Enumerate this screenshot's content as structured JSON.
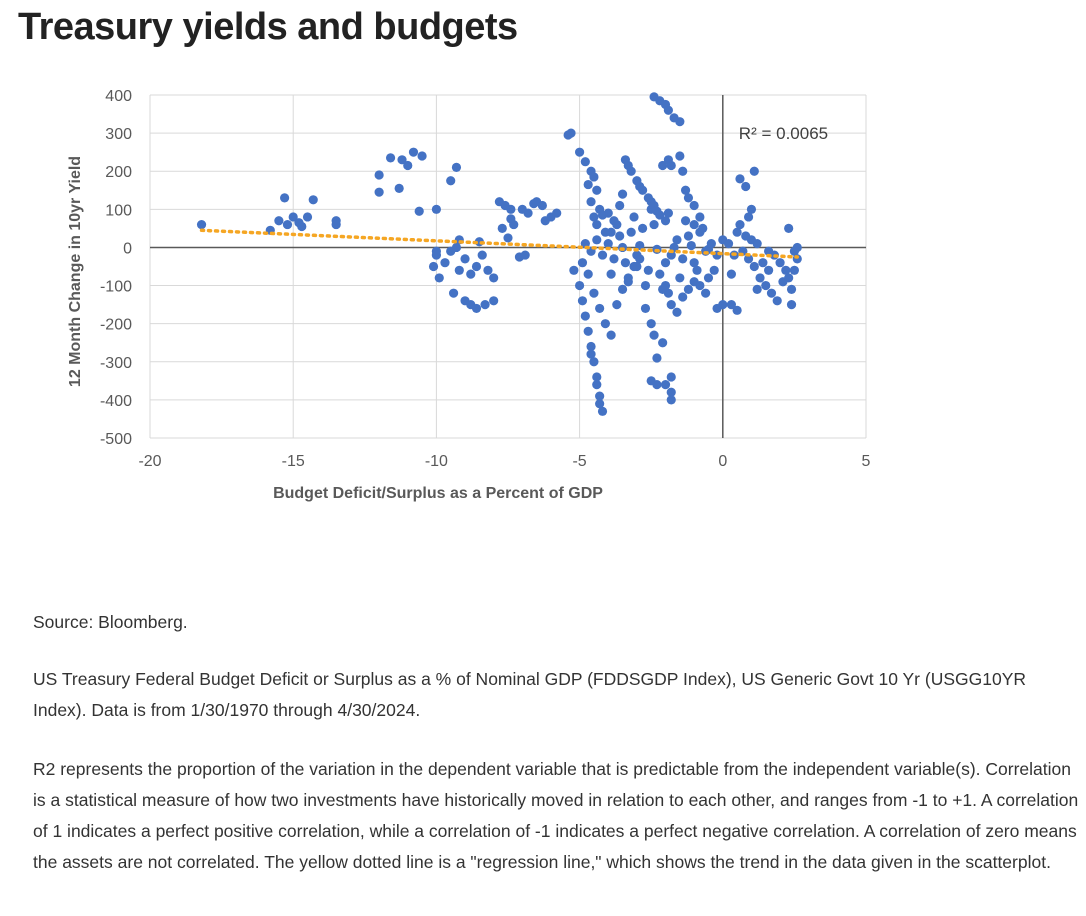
{
  "page": {
    "title": "Treasury yields and budgets",
    "source": "Source: Bloomberg.",
    "description": "US Treasury Federal Budget Deficit or Surplus as a % of Nominal GDP (FDDSGDP Index), US Generic Govt 10 Yr (USGG10YR Index). Data is from 1/30/1970 through 4/30/2024.",
    "r2_note": "R2 represents the proportion of the variation in the dependent variable that is predictable from the independent variable(s). Correlation is a statistical measure of how two investments have historically moved in relation to each other, and ranges from -1 to +1. A correlation of 1 indicates a perfect positive correlation, while a correlation of -1 indicates a perfect negative correlation. A correlation of zero means the assets are not correlated. The yellow dotted line is a \"regression line,\" which shows the trend in the data given in the scatterplot."
  },
  "chart_data": {
    "type": "scatter",
    "title": "",
    "xlabel": "Budget Deficit/Surplus as a Percent of GDP",
    "ylabel": "12 Month Change in 10yr Yield",
    "xlim": [
      -20,
      5
    ],
    "ylim": [
      -500,
      400
    ],
    "xticks": [
      -20,
      -15,
      -10,
      -5,
      0,
      5
    ],
    "yticks": [
      400,
      300,
      200,
      100,
      0,
      -100,
      -200,
      -300,
      -400,
      -500
    ],
    "grid": true,
    "annotation": "R² = 0.0065",
    "point_color": "#4472C4",
    "trendline_color": "#F5A623",
    "trendline": {
      "x": [
        -18.2,
        2.6
      ],
      "y": [
        45,
        -25
      ]
    },
    "points": [
      [
        -18.2,
        60
      ],
      [
        -15.3,
        130
      ],
      [
        -15.5,
        70
      ],
      [
        -15.2,
        60
      ],
      [
        -15,
        80
      ],
      [
        -14.8,
        65
      ],
      [
        -14.5,
        80
      ],
      [
        -14.3,
        125
      ],
      [
        -15.8,
        45
      ],
      [
        -14.7,
        55
      ],
      [
        -13.5,
        60
      ],
      [
        -13.5,
        70
      ],
      [
        -12.0,
        190
      ],
      [
        -12.0,
        145
      ],
      [
        -11.6,
        235
      ],
      [
        -11.3,
        155
      ],
      [
        -11.0,
        215
      ],
      [
        -10.8,
        250
      ],
      [
        -10.5,
        240
      ],
      [
        -10.6,
        95
      ],
      [
        -11.2,
        230
      ],
      [
        -10.0,
        100
      ],
      [
        -9.5,
        175
      ],
      [
        -9.3,
        210
      ],
      [
        -10.1,
        -50
      ],
      [
        -10.0,
        -20
      ],
      [
        -9.9,
        -80
      ],
      [
        -9.7,
        -40
      ],
      [
        -9.5,
        -10
      ],
      [
        -9.3,
        0
      ],
      [
        -9.2,
        -60
      ],
      [
        -9.0,
        -30
      ],
      [
        -8.8,
        -70
      ],
      [
        -8.6,
        -50
      ],
      [
        -8.4,
        -20
      ],
      [
        -8.2,
        -60
      ],
      [
        -8.0,
        -80
      ],
      [
        -9.4,
        -120
      ],
      [
        -9.0,
        -140
      ],
      [
        -8.8,
        -150
      ],
      [
        -8.6,
        -160
      ],
      [
        -8.3,
        -150
      ],
      [
        -8.0,
        -140
      ],
      [
        -9.2,
        20
      ],
      [
        -8.5,
        15
      ],
      [
        -10.0,
        -10
      ],
      [
        -7.8,
        120
      ],
      [
        -7.6,
        110
      ],
      [
        -7.4,
        100
      ],
      [
        -7.0,
        100
      ],
      [
        -6.8,
        90
      ],
      [
        -6.6,
        115
      ],
      [
        -6.3,
        110
      ],
      [
        -6.0,
        80
      ],
      [
        -5.8,
        90
      ],
      [
        -7.7,
        50
      ],
      [
        -7.5,
        25
      ],
      [
        -7.3,
        60
      ],
      [
        -7.1,
        -25
      ],
      [
        -6.9,
        -20
      ],
      [
        -7.4,
        75
      ],
      [
        -6.5,
        120
      ],
      [
        -6.2,
        70
      ],
      [
        -5.4,
        295
      ],
      [
        -5.3,
        300
      ],
      [
        -5.0,
        250
      ],
      [
        -4.8,
        225
      ],
      [
        -4.6,
        200
      ],
      [
        -4.5,
        185
      ],
      [
        -4.7,
        165
      ],
      [
        -4.4,
        150
      ],
      [
        -4.6,
        120
      ],
      [
        -4.5,
        80
      ],
      [
        -4.4,
        60
      ],
      [
        -4.3,
        100
      ],
      [
        -4.2,
        85
      ],
      [
        -4.0,
        90
      ],
      [
        -3.9,
        40
      ],
      [
        -3.8,
        70
      ],
      [
        -3.6,
        110
      ],
      [
        -3.5,
        140
      ],
      [
        -3.4,
        230
      ],
      [
        -3.3,
        215
      ],
      [
        -3.2,
        200
      ],
      [
        -3.0,
        175
      ],
      [
        -2.9,
        160
      ],
      [
        -2.8,
        150
      ],
      [
        -2.6,
        130
      ],
      [
        -2.5,
        120
      ],
      [
        -2.4,
        110
      ],
      [
        -2.3,
        95
      ],
      [
        -2.2,
        85
      ],
      [
        -2.1,
        215
      ],
      [
        -1.9,
        230
      ],
      [
        -1.8,
        215
      ],
      [
        -1.5,
        240
      ],
      [
        -1.4,
        200
      ],
      [
        -1.3,
        150
      ],
      [
        -1.2,
        130
      ],
      [
        -1.0,
        110
      ],
      [
        -0.8,
        80
      ],
      [
        -5.2,
        -60
      ],
      [
        -5.0,
        -100
      ],
      [
        -4.9,
        -140
      ],
      [
        -4.8,
        -180
      ],
      [
        -4.7,
        -220
      ],
      [
        -4.6,
        -260
      ],
      [
        -4.6,
        -280
      ],
      [
        -4.5,
        -300
      ],
      [
        -4.4,
        -340
      ],
      [
        -4.4,
        -360
      ],
      [
        -4.3,
        -390
      ],
      [
        -4.3,
        -410
      ],
      [
        -4.2,
        -430
      ],
      [
        -4.9,
        -40
      ],
      [
        -4.7,
        -70
      ],
      [
        -4.5,
        -120
      ],
      [
        -4.3,
        -160
      ],
      [
        -4.1,
        -200
      ],
      [
        -3.9,
        -230
      ],
      [
        -3.7,
        -150
      ],
      [
        -3.5,
        -110
      ],
      [
        -3.3,
        -80
      ],
      [
        -3.1,
        -50
      ],
      [
        -2.9,
        -30
      ],
      [
        -2.7,
        -160
      ],
      [
        -2.5,
        -200
      ],
      [
        -2.4,
        -230
      ],
      [
        -2.3,
        -290
      ],
      [
        -2.1,
        -250
      ],
      [
        -2.5,
        -350
      ],
      [
        -2.3,
        -360
      ],
      [
        -2.0,
        -360
      ],
      [
        -1.8,
        -340
      ],
      [
        -1.8,
        -380
      ],
      [
        -1.8,
        -400
      ],
      [
        -2.0,
        -100
      ],
      [
        -1.9,
        -120
      ],
      [
        -1.8,
        -150
      ],
      [
        -1.6,
        -170
      ],
      [
        -1.4,
        -130
      ],
      [
        -1.2,
        -110
      ],
      [
        -1.0,
        -90
      ],
      [
        -0.8,
        -100
      ],
      [
        -0.6,
        -120
      ],
      [
        -0.5,
        -80
      ],
      [
        -0.3,
        -60
      ],
      [
        -0.2,
        -160
      ],
      [
        0.0,
        -150
      ],
      [
        0.3,
        -150
      ],
      [
        0.5,
        -165
      ],
      [
        -2.4,
        395
      ],
      [
        -2.2,
        385
      ],
      [
        -2.0,
        375
      ],
      [
        -1.9,
        360
      ],
      [
        -1.7,
        340
      ],
      [
        -1.5,
        330
      ],
      [
        -4.8,
        10
      ],
      [
        -4.6,
        -10
      ],
      [
        -4.4,
        20
      ],
      [
        -4.2,
        -20
      ],
      [
        -4.0,
        10
      ],
      [
        -3.8,
        -30
      ],
      [
        -3.6,
        30
      ],
      [
        -3.4,
        -40
      ],
      [
        -3.2,
        40
      ],
      [
        -3.0,
        -50
      ],
      [
        -2.8,
        50
      ],
      [
        -2.6,
        -60
      ],
      [
        -2.4,
        60
      ],
      [
        -2.2,
        -70
      ],
      [
        -2.0,
        70
      ],
      [
        -1.8,
        -20
      ],
      [
        -1.6,
        20
      ],
      [
        -1.4,
        -30
      ],
      [
        -1.2,
        30
      ],
      [
        -1.0,
        -40
      ],
      [
        -0.8,
        40
      ],
      [
        -0.6,
        -10
      ],
      [
        -0.4,
        10
      ],
      [
        -0.2,
        -20
      ],
      [
        0.0,
        20
      ],
      [
        -3.9,
        -70
      ],
      [
        -3.7,
        60
      ],
      [
        -3.3,
        -90
      ],
      [
        -3.1,
        80
      ],
      [
        -2.7,
        -100
      ],
      [
        -2.5,
        100
      ],
      [
        -2.1,
        -110
      ],
      [
        -1.9,
        90
      ],
      [
        -1.5,
        -80
      ],
      [
        -1.3,
        70
      ],
      [
        -0.9,
        -60
      ],
      [
        -0.7,
        50
      ],
      [
        -3.5,
        0
      ],
      [
        -2.9,
        5
      ],
      [
        -2.3,
        -5
      ],
      [
        -1.7,
        0
      ],
      [
        -1.1,
        5
      ],
      [
        -0.5,
        -5
      ],
      [
        -4.1,
        40
      ],
      [
        -3.0,
        -20
      ],
      [
        -2.0,
        -40
      ],
      [
        -1.0,
        60
      ],
      [
        0.6,
        180
      ],
      [
        0.8,
        160
      ],
      [
        1.1,
        200
      ],
      [
        1.0,
        100
      ],
      [
        0.9,
        80
      ],
      [
        0.6,
        60
      ],
      [
        0.5,
        40
      ],
      [
        0.8,
        30
      ],
      [
        1.0,
        20
      ],
      [
        1.2,
        10
      ],
      [
        0.7,
        -10
      ],
      [
        0.9,
        -30
      ],
      [
        1.1,
        -50
      ],
      [
        1.3,
        -80
      ],
      [
        1.5,
        -100
      ],
      [
        1.7,
        -120
      ],
      [
        1.9,
        -140
      ],
      [
        2.1,
        -90
      ],
      [
        2.3,
        -80
      ],
      [
        2.4,
        -110
      ],
      [
        2.4,
        -150
      ],
      [
        2.5,
        -60
      ],
      [
        2.5,
        -10
      ],
      [
        2.6,
        -30
      ],
      [
        2.6,
        0
      ],
      [
        2.3,
        50
      ],
      [
        1.4,
        -40
      ],
      [
        1.6,
        -60
      ],
      [
        1.8,
        -20
      ],
      [
        2.0,
        -40
      ],
      [
        2.2,
        -60
      ],
      [
        0.4,
        -20
      ],
      [
        0.3,
        -70
      ],
      [
        0.2,
        10
      ],
      [
        1.2,
        -110
      ],
      [
        1.6,
        -10
      ]
    ]
  }
}
